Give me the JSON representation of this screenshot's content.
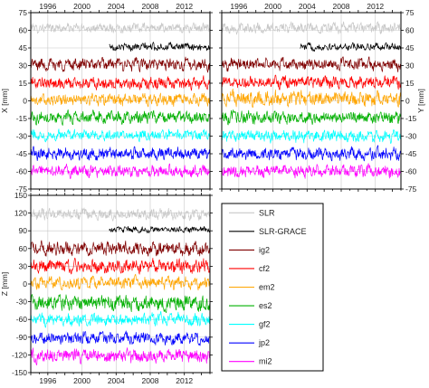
{
  "chart_data": {
    "type": "line",
    "grid": true,
    "time_axis": {
      "range": [
        1994.0,
        2015.0
      ],
      "tick_labels": [
        "1996",
        "2000",
        "2004",
        "2008",
        "2012"
      ]
    },
    "legend": {
      "placement": "bottom-right panel",
      "entries": [
        {
          "name": "SLR",
          "color": "#c8c8c8"
        },
        {
          "name": "SLR-GRACE",
          "color": "#000000"
        },
        {
          "name": "ig2",
          "color": "#800000"
        },
        {
          "name": "cf2",
          "color": "#ff0000"
        },
        {
          "name": "em2",
          "color": "#ffa500"
        },
        {
          "name": "es2",
          "color": "#00b000"
        },
        {
          "name": "gf2",
          "color": "#00ffff"
        },
        {
          "name": "jp2",
          "color": "#0000ff"
        },
        {
          "name": "mi2",
          "color": "#ff00ff"
        }
      ]
    },
    "panels": [
      {
        "id": "x",
        "ylabel": "X [mm]",
        "ylim": [
          -75,
          75
        ],
        "ytick_labels": [
          "75",
          "60",
          "45",
          "30",
          "15",
          "0",
          "-15",
          "-30",
          "-45",
          "-60",
          "-75"
        ],
        "top_year_labels": true,
        "bottom_year_labels": false,
        "series": [
          {
            "name": "SLR",
            "color": "#c8c8c8",
            "start": 1994.0,
            "end": 2015.0,
            "level": 62,
            "noise": 3
          },
          {
            "name": "SLR-GRACE",
            "color": "#000000",
            "start": 2003.2,
            "end": 2015.0,
            "level": 46,
            "noise": 2.5
          },
          {
            "name": "ig2",
            "color": "#800000",
            "start": 1994.0,
            "end": 2015.0,
            "level": 31,
            "noise": 4
          },
          {
            "name": "cf2",
            "color": "#ff0000",
            "start": 1994.0,
            "end": 2015.0,
            "level": 15,
            "noise": 4
          },
          {
            "name": "em2",
            "color": "#ffa500",
            "start": 1994.0,
            "end": 2015.0,
            "level": 1,
            "noise": 4
          },
          {
            "name": "es2",
            "color": "#00b000",
            "start": 1994.0,
            "end": 2015.0,
            "level": -14,
            "noise": 4
          },
          {
            "name": "gf2",
            "color": "#00ffff",
            "start": 1994.0,
            "end": 2015.0,
            "level": -29,
            "noise": 3.5
          },
          {
            "name": "jp2",
            "color": "#0000ff",
            "start": 1994.0,
            "end": 2015.0,
            "level": -45,
            "noise": 4
          },
          {
            "name": "mi2",
            "color": "#ff00ff",
            "start": 1994.0,
            "end": 2015.0,
            "level": -60,
            "noise": 4
          }
        ]
      },
      {
        "id": "y",
        "ylabel": "Y [mm]",
        "ylim": [
          -75,
          75
        ],
        "ytick_labels": [
          "75",
          "60",
          "45",
          "30",
          "15",
          "0",
          "-15",
          "-30",
          "-45",
          "-60",
          "-75"
        ],
        "top_year_labels": true,
        "bottom_year_labels": false,
        "series": [
          {
            "name": "SLR",
            "color": "#c8c8c8",
            "start": 1994.0,
            "end": 2015.0,
            "level": 62,
            "noise": 3.5
          },
          {
            "name": "SLR-GRACE",
            "color": "#000000",
            "start": 2003.2,
            "end": 2015.0,
            "level": 46,
            "noise": 2.5
          },
          {
            "name": "ig2",
            "color": "#800000",
            "start": 1994.0,
            "end": 2015.0,
            "level": 31,
            "noise": 4
          },
          {
            "name": "cf2",
            "color": "#ff0000",
            "start": 1994.0,
            "end": 2015.0,
            "level": 16,
            "noise": 4
          },
          {
            "name": "em2",
            "color": "#ffa500",
            "start": 1994.0,
            "end": 2015.0,
            "level": 2,
            "noise": 5
          },
          {
            "name": "es2",
            "color": "#00b000",
            "start": 1994.0,
            "end": 2015.0,
            "level": -14,
            "noise": 4
          },
          {
            "name": "gf2",
            "color": "#00ffff",
            "start": 1994.0,
            "end": 2015.0,
            "level": -30,
            "noise": 4
          },
          {
            "name": "jp2",
            "color": "#0000ff",
            "start": 1994.0,
            "end": 2015.0,
            "level": -45,
            "noise": 4
          },
          {
            "name": "mi2",
            "color": "#ff00ff",
            "start": 1994.0,
            "end": 2015.0,
            "level": -60,
            "noise": 4
          }
        ]
      },
      {
        "id": "z",
        "ylabel": "Z [mm]",
        "ylim": [
          -150,
          150
        ],
        "ytick_labels": [
          "150",
          "120",
          "90",
          "60",
          "30",
          "0",
          "-30",
          "-60",
          "-90",
          "-120",
          "-150"
        ],
        "top_year_labels": false,
        "bottom_year_labels": true,
        "series": [
          {
            "name": "SLR",
            "color": "#c8c8c8",
            "start": 1994.0,
            "end": 2015.0,
            "level": 118,
            "noise": 7
          },
          {
            "name": "SLR-GRACE",
            "color": "#000000",
            "start": 2003.2,
            "end": 2015.0,
            "level": 92,
            "noise": 4
          },
          {
            "name": "ig2",
            "color": "#800000",
            "start": 1994.0,
            "end": 2015.0,
            "level": 60,
            "noise": 9
          },
          {
            "name": "cf2",
            "color": "#ff0000",
            "start": 1994.0,
            "end": 2015.0,
            "level": 30,
            "noise": 9
          },
          {
            "name": "em2",
            "color": "#ffa500",
            "start": 1994.0,
            "end": 2015.0,
            "level": 2,
            "noise": 8
          },
          {
            "name": "es2",
            "color": "#00b000",
            "start": 1994.0,
            "end": 2015.0,
            "level": -32,
            "noise": 10
          },
          {
            "name": "gf2",
            "color": "#00ffff",
            "start": 1994.0,
            "end": 2015.0,
            "level": -60,
            "noise": 8
          },
          {
            "name": "jp2",
            "color": "#0000ff",
            "start": 1994.0,
            "end": 2015.0,
            "level": -92,
            "noise": 8
          },
          {
            "name": "mi2",
            "color": "#ff00ff",
            "start": 1994.0,
            "end": 2015.0,
            "level": -122,
            "noise": 9
          }
        ]
      }
    ]
  }
}
